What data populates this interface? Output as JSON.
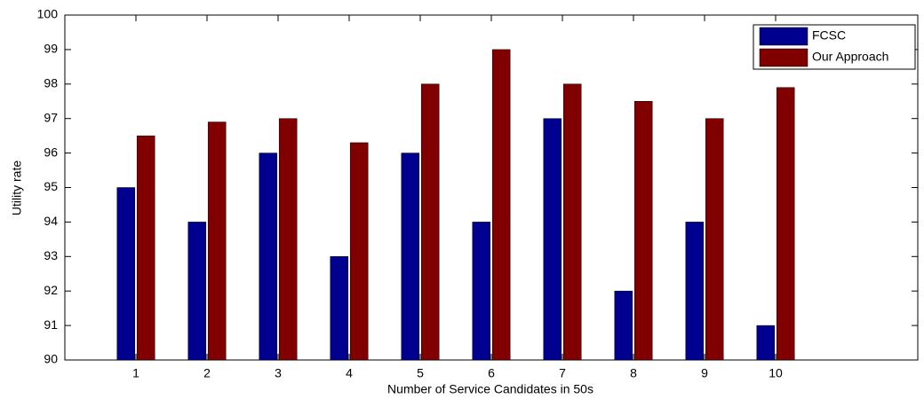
{
  "chart_data": {
    "type": "bar",
    "x": [
      1,
      2,
      3,
      4,
      5,
      6,
      7,
      8,
      9,
      10
    ],
    "series": [
      {
        "name": "FCSC",
        "color": "#00008f",
        "values": [
          95,
          94,
          96,
          93,
          96,
          94,
          97,
          92,
          94,
          91
        ]
      },
      {
        "name": "Our Approach",
        "color": "#800000",
        "values": [
          96.5,
          96.9,
          97,
          96.3,
          98,
          99,
          98,
          97.5,
          97,
          97.9
        ]
      }
    ],
    "xlabel": "Number of Service Candidates in 50s",
    "ylabel": "Utility rate",
    "xlim": [
      0,
      12
    ],
    "xticks": [
      1,
      2,
      3,
      4,
      5,
      6,
      7,
      8,
      9,
      10
    ],
    "ylim": [
      90,
      100
    ],
    "yticks": [
      90,
      91,
      92,
      93,
      94,
      95,
      96,
      97,
      98,
      99,
      100
    ],
    "legend": "upper right"
  }
}
